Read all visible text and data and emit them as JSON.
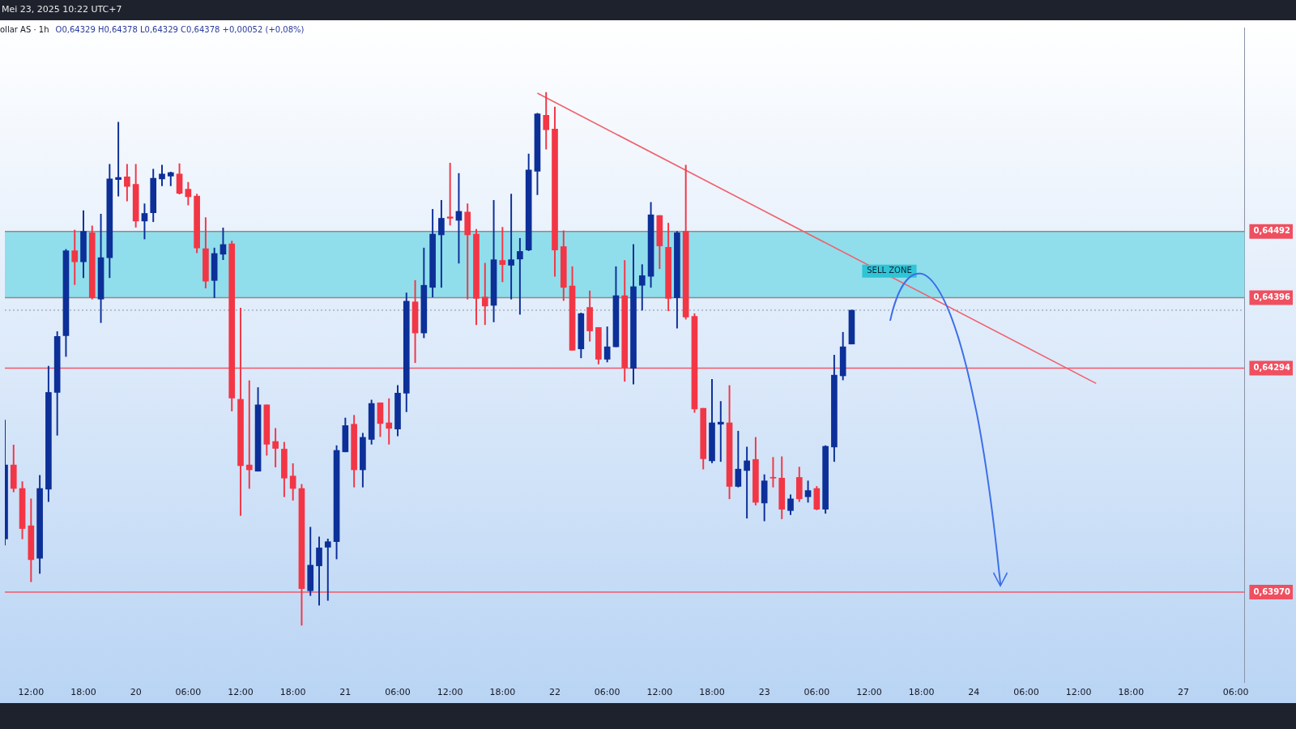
{
  "chart_data": {
    "type": "candlestick",
    "title": "ollar AS · 1h",
    "subtitle": "O0,64329 H0,64378 L0,64329 C0,64378 +0,00052 (+0,08%)",
    "annotations": [
      "Mei 23, 2025 10:22 UTC+7"
    ],
    "categories": [
      null,
      null,
      null,
      "12:00",
      null,
      null,
      null,
      null,
      null,
      "18:00",
      null,
      null,
      null,
      null,
      null,
      "20",
      null,
      null,
      null,
      null,
      null,
      "06:00",
      null,
      null,
      null,
      null,
      null,
      "12:00",
      null,
      null,
      null,
      null,
      null,
      "18:00",
      null,
      null,
      null,
      null,
      null,
      "21",
      null,
      null,
      null,
      null,
      null,
      "06:00",
      null,
      null,
      null,
      null,
      null,
      "12:00",
      null,
      null,
      null,
      null,
      null,
      "18:00",
      null,
      null,
      null,
      null,
      null,
      "22",
      null,
      null,
      null,
      null,
      null,
      "06:00",
      null,
      null,
      null,
      null,
      null,
      "12:00",
      null,
      null,
      null,
      null,
      null,
      "18:00",
      null,
      null,
      null,
      null,
      null,
      "23",
      null,
      null,
      null,
      null,
      null,
      "06:00",
      null,
      null,
      null,
      null,
      null,
      "12:00",
      null,
      null,
      null,
      null,
      null,
      "18:00",
      null,
      null,
      null,
      null,
      null,
      "24",
      null,
      null,
      null,
      null,
      null,
      "06:00",
      null,
      null,
      null,
      null,
      null,
      "12:00",
      null,
      null,
      null,
      null,
      null,
      "18:00",
      null,
      null,
      null,
      null,
      null,
      "27",
      null,
      null,
      null,
      null,
      null,
      "06:00",
      null
    ],
    "ohlc": [
      [
        0.64047,
        0.64219,
        0.64038,
        0.64154
      ],
      [
        0.64154,
        0.64183,
        0.64115,
        0.6412
      ],
      [
        0.6412,
        0.6413,
        0.64047,
        0.64062
      ],
      [
        0.64066,
        0.64105,
        0.63985,
        0.64017
      ],
      [
        0.64019,
        0.64139,
        0.63997,
        0.6412
      ],
      [
        0.64119,
        0.64297,
        0.64101,
        0.64259
      ],
      [
        0.64259,
        0.64347,
        0.64197,
        0.6434
      ],
      [
        0.64341,
        0.64466,
        0.64311,
        0.64464
      ],
      [
        0.64464,
        0.64494,
        0.64415,
        0.64448
      ],
      [
        0.64448,
        0.64522,
        0.64425,
        0.64492
      ],
      [
        0.6449,
        0.645,
        0.64394,
        0.64396
      ],
      [
        0.64394,
        0.64517,
        0.6436,
        0.64454
      ],
      [
        0.64454,
        0.64589,
        0.64425,
        0.64568
      ],
      [
        0.64567,
        0.6465,
        0.64543,
        0.6457
      ],
      [
        0.64571,
        0.64589,
        0.64536,
        0.64557
      ],
      [
        0.6456,
        0.64589,
        0.64498,
        0.64507
      ],
      [
        0.64507,
        0.64532,
        0.64481,
        0.64518
      ],
      [
        0.64519,
        0.64582,
        0.64506,
        0.64569
      ],
      [
        0.64568,
        0.64588,
        0.64558,
        0.64575
      ],
      [
        0.64572,
        0.64578,
        0.64558,
        0.64577
      ],
      [
        0.64575,
        0.6459,
        0.64546,
        0.64547
      ],
      [
        0.64553,
        0.64563,
        0.6453,
        0.64542
      ],
      [
        0.64543,
        0.64546,
        0.64461,
        0.64468
      ],
      [
        0.64467,
        0.64512,
        0.6441,
        0.6442
      ],
      [
        0.64421,
        0.64468,
        0.64396,
        0.6446
      ],
      [
        0.64459,
        0.64497,
        0.64451,
        0.64473
      ],
      [
        0.64474,
        0.64478,
        0.64232,
        0.64251
      ],
      [
        0.64249,
        0.64381,
        0.64081,
        0.64153
      ],
      [
        0.64154,
        0.64276,
        0.6412,
        0.64147
      ],
      [
        0.64145,
        0.64266,
        0.64145,
        0.64241
      ],
      [
        0.64241,
        0.64241,
        0.64168,
        0.64184
      ],
      [
        0.64188,
        0.64207,
        0.64151,
        0.64178
      ],
      [
        0.64177,
        0.64187,
        0.64108,
        0.64135
      ],
      [
        0.64138,
        0.64156,
        0.64103,
        0.6412
      ],
      [
        0.6412,
        0.64126,
        0.63922,
        0.63975
      ],
      [
        0.63972,
        0.64064,
        0.63965,
        0.64009
      ],
      [
        0.64008,
        0.6405,
        0.63951,
        0.64034
      ],
      [
        0.64035,
        0.64047,
        0.63958,
        0.64043
      ],
      [
        0.64043,
        0.64182,
        0.64018,
        0.64175
      ],
      [
        0.64173,
        0.64222,
        0.64173,
        0.64211
      ],
      [
        0.64213,
        0.64226,
        0.64122,
        0.64147
      ],
      [
        0.64147,
        0.642,
        0.64122,
        0.64194
      ],
      [
        0.64191,
        0.64248,
        0.64184,
        0.64243
      ],
      [
        0.64244,
        0.64244,
        0.64195,
        0.64214
      ],
      [
        0.64215,
        0.6425,
        0.64184,
        0.64207
      ],
      [
        0.64206,
        0.64269,
        0.64196,
        0.64258
      ],
      [
        0.64258,
        0.64403,
        0.64231,
        0.64391
      ],
      [
        0.6439,
        0.64421,
        0.64302,
        0.64345
      ],
      [
        0.64345,
        0.64468,
        0.64338,
        0.64414
      ],
      [
        0.64411,
        0.64524,
        0.64397,
        0.64488
      ],
      [
        0.64487,
        0.64537,
        0.64411,
        0.64511
      ],
      [
        0.64513,
        0.64591,
        0.64501,
        0.64511
      ],
      [
        0.64508,
        0.64576,
        0.64446,
        0.64521
      ],
      [
        0.6452,
        0.64532,
        0.64394,
        0.64487
      ],
      [
        0.64488,
        0.64495,
        0.64357,
        0.64395
      ],
      [
        0.64397,
        0.64446,
        0.64357,
        0.64384
      ],
      [
        0.64385,
        0.64537,
        0.64361,
        0.64451
      ],
      [
        0.6445,
        0.64498,
        0.64419,
        0.64444
      ],
      [
        0.64443,
        0.64546,
        0.64394,
        0.64451
      ],
      [
        0.64452,
        0.64482,
        0.64372,
        0.64463
      ],
      [
        0.64465,
        0.64604,
        0.64464,
        0.64581
      ],
      [
        0.64579,
        0.64663,
        0.64545,
        0.64662
      ],
      [
        0.6466,
        0.64693,
        0.64611,
        0.64639
      ],
      [
        0.6464,
        0.64672,
        0.64427,
        0.64465
      ],
      [
        0.6447,
        0.64493,
        0.64392,
        0.64411
      ],
      [
        0.64413,
        0.64441,
        0.6432,
        0.6432
      ],
      [
        0.64322,
        0.64374,
        0.64309,
        0.64373
      ],
      [
        0.64382,
        0.64406,
        0.64333,
        0.64348
      ],
      [
        0.64353,
        0.64353,
        0.643,
        0.64307
      ],
      [
        0.64307,
        0.64354,
        0.64303,
        0.64325
      ],
      [
        0.64325,
        0.64441,
        0.64325,
        0.64399
      ],
      [
        0.64399,
        0.6445,
        0.64275,
        0.64295
      ],
      [
        0.64294,
        0.64473,
        0.64271,
        0.64412
      ],
      [
        0.64414,
        0.64444,
        0.64378,
        0.64428
      ],
      [
        0.64427,
        0.64534,
        0.64411,
        0.64516
      ],
      [
        0.64515,
        0.64515,
        0.64438,
        0.64471
      ],
      [
        0.64469,
        0.64504,
        0.64377,
        0.64395
      ],
      [
        0.64396,
        0.64492,
        0.64352,
        0.6449
      ],
      [
        0.64492,
        0.64588,
        0.64365,
        0.64368
      ],
      [
        0.64369,
        0.64373,
        0.6423,
        0.64235
      ],
      [
        0.64236,
        0.64236,
        0.64148,
        0.64163
      ],
      [
        0.6416,
        0.64278,
        0.64157,
        0.64215
      ],
      [
        0.64213,
        0.64246,
        0.64159,
        0.64216
      ],
      [
        0.64215,
        0.64269,
        0.64105,
        0.64123
      ],
      [
        0.64123,
        0.64203,
        0.64122,
        0.64148
      ],
      [
        0.64146,
        0.6418,
        0.64077,
        0.6416
      ],
      [
        0.64162,
        0.64194,
        0.64096,
        0.641
      ],
      [
        0.64099,
        0.6414,
        0.64073,
        0.64131
      ],
      [
        0.64136,
        0.64165,
        0.64122,
        0.64135
      ],
      [
        0.64135,
        0.64166,
        0.64076,
        0.6409
      ],
      [
        0.64088,
        0.64111,
        0.64082,
        0.64105
      ],
      [
        0.64136,
        0.64151,
        0.64101,
        0.64105
      ],
      [
        0.64108,
        0.64131,
        0.641,
        0.64117
      ],
      [
        0.6412,
        0.64123,
        0.64089,
        0.6409
      ],
      [
        0.6409,
        0.64182,
        0.64084,
        0.64181
      ],
      [
        0.6418,
        0.64313,
        0.64159,
        0.64284
      ],
      [
        0.64283,
        0.64346,
        0.64277,
        0.64325
      ],
      [
        0.64329,
        0.64378,
        0.64329,
        0.64378
      ],
      null,
      null,
      null,
      null,
      null,
      null,
      null,
      null,
      null,
      null,
      null,
      null,
      null,
      null,
      null,
      null,
      null,
      null,
      null,
      null,
      null,
      null,
      null,
      null,
      null,
      null,
      null,
      null,
      null,
      null,
      null,
      null,
      null,
      null,
      null,
      null,
      null,
      null,
      null,
      null,
      null,
      null,
      null,
      null,
      null
    ],
    "colors": [
      "#0c2f98",
      "#f23645",
      "#f23645",
      "#f23645",
      "#0c2f98",
      "#0c2f98",
      "#0c2f98",
      "#0c2f98",
      "#f23645",
      "#0c2f98",
      "#f23645",
      "#0c2f98",
      "#0c2f98",
      "#0c2f98",
      "#f23645",
      "#f23645",
      "#0c2f98",
      "#0c2f98",
      "#0c2f98",
      "#0c2f98",
      "#f23645",
      "#f23645",
      "#f23645",
      "#f23645",
      "#0c2f98",
      "#0c2f98",
      "#f23645",
      "#f23645",
      "#f23645",
      "#0c2f98",
      "#f23645",
      "#f23645",
      "#f23645",
      "#f23645",
      "#f23645",
      "#0c2f98",
      "#0c2f98",
      "#0c2f98",
      "#0c2f98",
      "#0c2f98",
      "#f23645",
      "#0c2f98",
      "#0c2f98",
      "#f23645",
      "#f23645",
      "#0c2f98",
      "#0c2f98",
      "#f23645",
      "#0c2f98",
      "#0c2f98",
      "#0c2f98",
      "#f23645",
      "#0c2f98",
      "#f23645",
      "#f23645",
      "#f23645",
      "#0c2f98",
      "#f23645",
      "#0c2f98",
      "#0c2f98",
      "#0c2f98",
      "#0c2f98",
      "#f23645",
      "#f23645",
      "#f23645",
      "#f23645",
      "#0c2f98",
      "#f23645",
      "#f23645",
      "#0c2f98",
      "#0c2f98",
      "#f23645",
      "#0c2f98",
      "#0c2f98",
      "#0c2f98",
      "#f23645",
      "#f23645",
      "#0c2f98",
      "#f23645",
      "#f23645",
      "#f23645",
      "#0c2f98",
      "#0c2f98",
      "#f23645",
      "#0c2f98",
      "#0c2f98",
      "#f23645",
      "#0c2f98",
      "#f23645",
      "#f23645",
      "#0c2f98",
      "#f23645",
      "#0c2f98",
      "#f23645",
      "#0c2f98",
      "#0c2f98",
      "#0c2f98",
      "#0c2f98",
      null,
      null,
      null,
      null,
      null,
      null,
      null,
      null,
      null,
      null,
      null,
      null,
      null,
      null,
      null,
      null,
      null,
      null,
      null,
      null,
      null,
      null,
      null,
      null,
      null,
      null,
      null,
      null,
      null,
      null,
      null,
      null,
      null,
      null,
      null,
      null,
      null,
      null,
      null,
      null,
      null,
      null,
      null,
      null,
      null
    ],
    "series": [
      {
        "type": "line",
        "color": "#f0606c",
        "values": [
          null,
          null,
          null,
          null,
          null,
          null,
          null,
          null,
          null,
          null,
          null,
          null,
          null,
          null,
          null,
          null,
          null,
          null,
          null,
          null,
          null,
          null,
          null,
          null,
          null,
          null,
          null,
          null,
          null,
          null,
          null,
          null,
          null,
          null,
          null,
          null,
          null,
          null,
          null,
          null,
          null,
          null,
          null,
          null,
          null,
          null,
          null,
          null,
          null,
          null,
          null,
          null,
          null,
          null,
          null,
          null,
          null,
          null,
          null,
          null,
          null,
          0.64692,
          null,
          null,
          null,
          null,
          null,
          null,
          null,
          null,
          null,
          null,
          null,
          null,
          null,
          null,
          null,
          null,
          null,
          null,
          null,
          null,
          null,
          null,
          null,
          null,
          null,
          null,
          null,
          null,
          null,
          null,
          null,
          null,
          null,
          null,
          null,
          null,
          null,
          null,
          null,
          null,
          null,
          null,
          null,
          null,
          null,
          null,
          null,
          null,
          null,
          null,
          null,
          null,
          null,
          null,
          null,
          null,
          null,
          null,
          null,
          null,
          null,
          null,
          null,
          0.64272,
          null,
          null,
          null,
          null,
          null,
          null,
          null,
          null,
          null,
          null,
          null,
          null,
          null,
          null,
          null,
          null,
          null
        ]
      }
    ],
    "ylim": [
      0.63839,
      0.64787
    ],
    "yticks": [
      {
        "value": 0.64492,
        "label": "0,64492"
      },
      {
        "value": 0.64396,
        "label": "0,64396"
      },
      {
        "value": 0.64294,
        "label": "0,64294"
      },
      {
        "value": 0.6397,
        "label": "0,63970"
      }
    ],
    "grid": false,
    "bands": [
      {
        "axis": "y",
        "from": 0.64396,
        "to": 0.64492,
        "label": "SELL ZONE",
        "color": "#86dbea"
      }
    ],
    "ref_lines": [
      {
        "axis": "y",
        "value": 0.64492,
        "color": "#8c8c8c"
      },
      {
        "axis": "y",
        "value": 0.64396,
        "color": "#8c8c8c"
      },
      {
        "axis": "y",
        "value": 0.64294,
        "color": "#f05a68"
      },
      {
        "axis": "y",
        "value": 0.6397,
        "color": "#f05a68"
      },
      {
        "axis": "y",
        "value": 0.64378,
        "color": "#8a93a6",
        "line_style": "dotted"
      }
    ]
  }
}
